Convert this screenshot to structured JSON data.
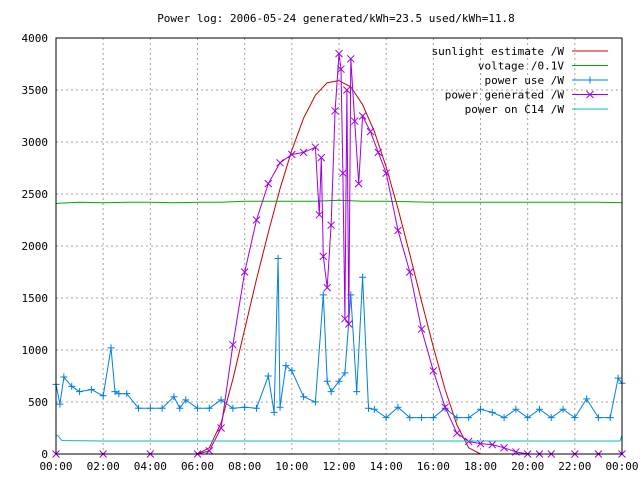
{
  "chart_data": {
    "type": "line",
    "title": "Power log: 2006-05-24 generated/kWh=23.5 used/kWh=11.8",
    "xlabel": "",
    "ylabel": "",
    "xlim": [
      "00:00",
      "24:00"
    ],
    "ylim": [
      0,
      4000
    ],
    "grid": true,
    "legend_position": "top-right",
    "x_ticks": [
      "00:00",
      "02:00",
      "04:00",
      "06:00",
      "08:00",
      "10:00",
      "12:00",
      "14:00",
      "16:00",
      "18:00",
      "20:00",
      "22:00",
      "00:00"
    ],
    "y_ticks": [
      0,
      500,
      1000,
      1500,
      2000,
      2500,
      3000,
      3500,
      4000
    ],
    "series": [
      {
        "name": "sunlight estimate /W",
        "color": "#cc0000",
        "marker": "none",
        "x": [
          "06:00",
          "06:30",
          "07:00",
          "07:30",
          "08:00",
          "08:30",
          "09:00",
          "09:30",
          "10:00",
          "10:30",
          "11:00",
          "11:30",
          "12:00",
          "12:30",
          "13:00",
          "13:30",
          "14:00",
          "14:30",
          "15:00",
          "15:30",
          "16:00",
          "16:30",
          "17:00",
          "17:30",
          "18:00"
        ],
        "values": [
          0,
          60,
          300,
          720,
          1200,
          1680,
          2130,
          2550,
          2920,
          3230,
          3450,
          3570,
          3590,
          3530,
          3360,
          3100,
          2760,
          2360,
          1920,
          1470,
          1030,
          620,
          280,
          60,
          0
        ]
      },
      {
        "name": "voltage /0.1V",
        "color": "#00aa00",
        "marker": "none",
        "x": [
          "00:00",
          "01:00",
          "02:00",
          "03:00",
          "04:00",
          "05:00",
          "06:00",
          "07:00",
          "08:00",
          "09:00",
          "10:00",
          "11:00",
          "12:00",
          "13:00",
          "14:00",
          "15:00",
          "16:00",
          "17:00",
          "18:00",
          "19:00",
          "20:00",
          "21:00",
          "22:00",
          "23:00",
          "24:00"
        ],
        "values": [
          2410,
          2420,
          2415,
          2420,
          2420,
          2415,
          2420,
          2420,
          2430,
          2430,
          2430,
          2430,
          2440,
          2430,
          2430,
          2425,
          2420,
          2420,
          2420,
          2420,
          2420,
          2420,
          2420,
          2420,
          2415
        ]
      },
      {
        "name": "power use /W",
        "color": "#0080e0",
        "marker": "plus",
        "x": [
          "00:00",
          "00:10",
          "00:20",
          "00:40",
          "01:00",
          "01:30",
          "02:00",
          "02:20",
          "02:30",
          "02:40",
          "03:00",
          "03:30",
          "04:00",
          "04:30",
          "05:00",
          "05:15",
          "05:30",
          "06:00",
          "06:30",
          "07:00",
          "07:30",
          "08:00",
          "08:30",
          "09:00",
          "09:15",
          "09:25",
          "09:30",
          "09:45",
          "10:00",
          "10:30",
          "11:00",
          "11:20",
          "11:30",
          "11:40",
          "12:00",
          "12:15",
          "12:30",
          "12:45",
          "13:00",
          "13:15",
          "13:30",
          "14:00",
          "14:30",
          "15:00",
          "15:30",
          "16:00",
          "16:30",
          "17:00",
          "17:30",
          "18:00",
          "18:30",
          "19:00",
          "19:30",
          "20:00",
          "20:30",
          "21:00",
          "21:30",
          "22:00",
          "22:30",
          "23:00",
          "23:30",
          "23:50",
          "24:00"
        ],
        "values": [
          670,
          480,
          740,
          650,
          600,
          620,
          560,
          1020,
          600,
          580,
          580,
          440,
          440,
          440,
          550,
          440,
          520,
          440,
          440,
          520,
          440,
          450,
          440,
          750,
          400,
          1880,
          450,
          850,
          800,
          550,
          500,
          1530,
          700,
          600,
          700,
          780,
          1530,
          600,
          1700,
          440,
          430,
          350,
          450,
          350,
          350,
          350,
          440,
          350,
          350,
          430,
          400,
          350,
          430,
          350,
          430,
          350,
          430,
          350,
          530,
          350,
          350,
          730,
          680
        ]
      },
      {
        "name": "power generated /W",
        "color": "#a000e0",
        "marker": "cross",
        "x": [
          "00:00",
          "02:00",
          "04:00",
          "06:00",
          "06:30",
          "07:00",
          "07:30",
          "08:00",
          "08:30",
          "09:00",
          "09:30",
          "10:00",
          "10:30",
          "11:00",
          "11:10",
          "11:15",
          "11:20",
          "11:30",
          "11:40",
          "11:50",
          "12:00",
          "12:05",
          "12:10",
          "12:15",
          "12:20",
          "12:25",
          "12:30",
          "12:40",
          "12:50",
          "13:00",
          "13:20",
          "13:40",
          "14:00",
          "14:30",
          "15:00",
          "15:30",
          "16:00",
          "16:30",
          "17:00",
          "17:30",
          "18:00",
          "18:30",
          "19:00",
          "19:30",
          "20:00",
          "20:30",
          "21:00",
          "22:00",
          "23:00",
          "24:00"
        ],
        "values": [
          0,
          0,
          0,
          0,
          30,
          250,
          1050,
          1750,
          2250,
          2600,
          2800,
          2880,
          2900,
          2950,
          2300,
          2850,
          1900,
          1600,
          2200,
          3300,
          3850,
          3700,
          2700,
          1300,
          3500,
          1250,
          3800,
          3200,
          2600,
          3250,
          3100,
          2900,
          2700,
          2150,
          1750,
          1200,
          800,
          450,
          200,
          120,
          100,
          90,
          60,
          20,
          0,
          0,
          0,
          0,
          0,
          0
        ]
      },
      {
        "name": "power on C14 /W",
        "color": "#00c0c0",
        "marker": "none",
        "x": [
          "00:00",
          "00:05",
          "00:15",
          "02:00",
          "04:00",
          "06:00",
          "08:00",
          "10:00",
          "12:00",
          "14:00",
          "16:00",
          "18:00",
          "20:00",
          "22:00",
          "23:55",
          "24:00"
        ],
        "values": [
          180,
          175,
          130,
          125,
          125,
          125,
          125,
          125,
          125,
          125,
          125,
          125,
          125,
          125,
          125,
          180
        ]
      }
    ]
  }
}
